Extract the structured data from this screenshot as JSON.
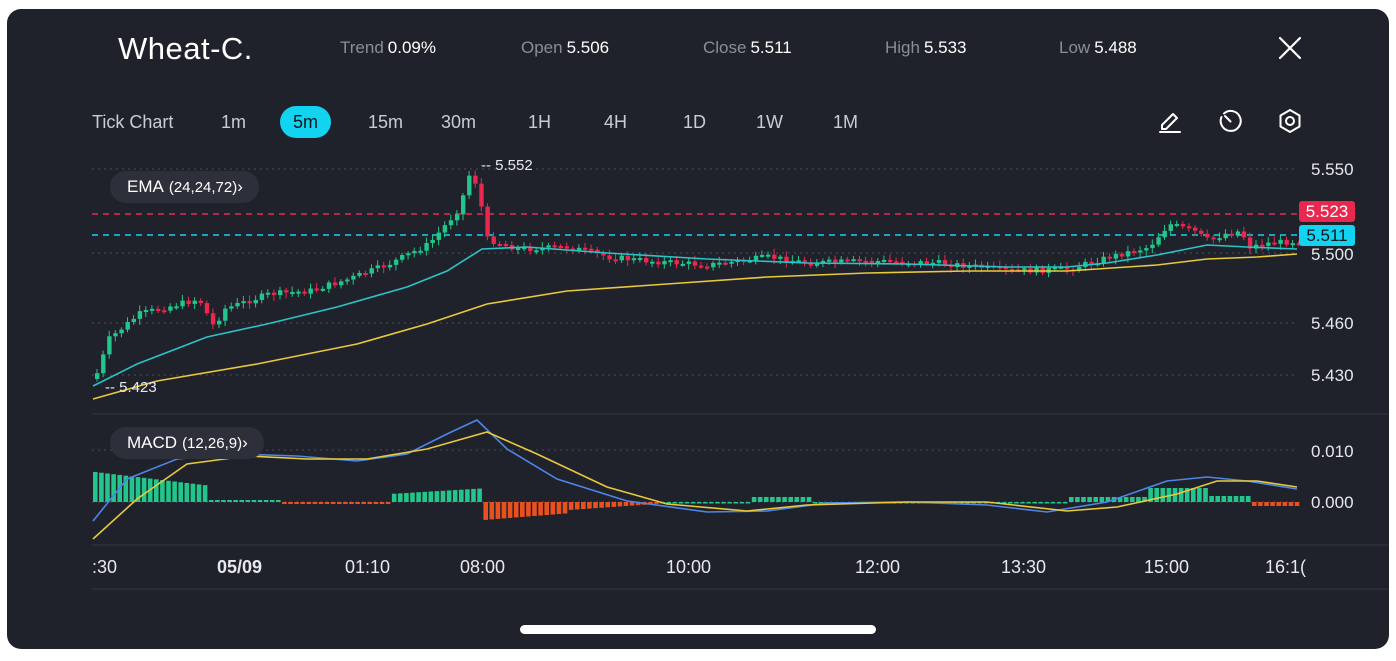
{
  "header": {
    "title": "Wheat-C.",
    "trend_label": "Trend",
    "trend_value": "0.09%",
    "open_label": "Open",
    "open_value": "5.506",
    "close_label": "Close",
    "close_value": "5.511",
    "high_label": "High",
    "high_value": "5.533",
    "low_label": "Low",
    "low_value": "5.488"
  },
  "timeframes": [
    "Tick Chart",
    "1m",
    "5m",
    "15m",
    "30m",
    "1H",
    "4H",
    "1D",
    "1W",
    "1M"
  ],
  "active_timeframe": "5m",
  "tools": {
    "draw": "pencil-icon",
    "history": "timer-icon",
    "settings": "settings-icon",
    "close": "close-icon"
  },
  "indicators": {
    "ema_label": "EMA",
    "ema_params": "(24,24,72)",
    "ema_chevron": "›",
    "macd_label": "MACD",
    "macd_params": "(12,26,9)",
    "macd_chevron": "›"
  },
  "price_axis": [
    "5.550",
    "5.500",
    "5.460",
    "5.430"
  ],
  "price_badges": {
    "high": "5.523",
    "current": "5.511"
  },
  "macd_axis": [
    "0.010",
    "0.000"
  ],
  "high_marker": "5.552",
  "low_marker": "5.423",
  "time_axis": [
    ":30",
    "05/09",
    "01:10",
    "08:00",
    "10:00",
    "12:00",
    "13:30",
    "15:00",
    "16:1("
  ],
  "colors": {
    "up": "#22c58b",
    "down": "#e8284f",
    "accent": "#12d3f0",
    "ema_fast": "#2bc3c9",
    "ema_slow": "#e8c93c",
    "macd_line": "#4c86e8",
    "signal_line": "#e8c93c",
    "macd_neg": "#e8511e"
  }
}
